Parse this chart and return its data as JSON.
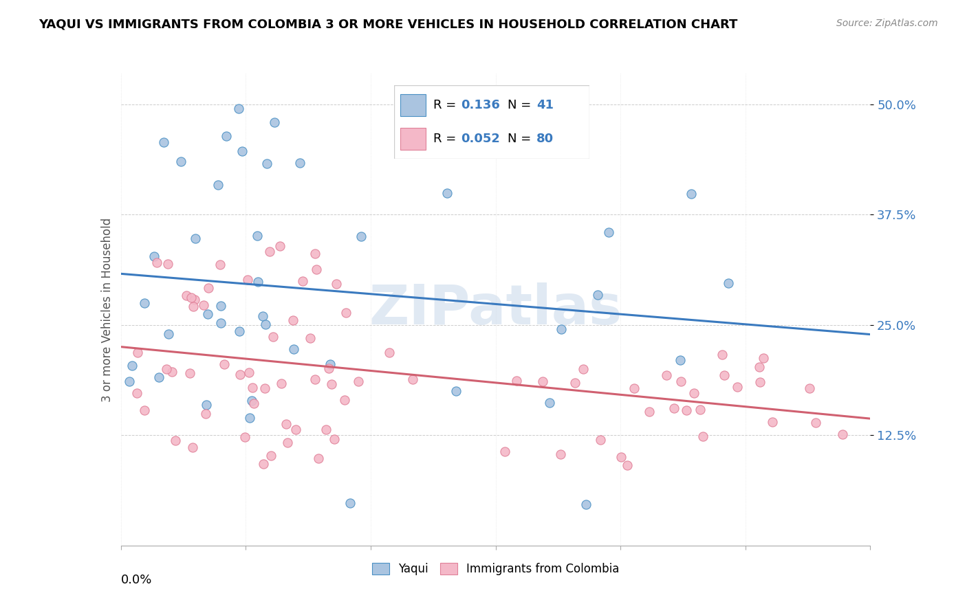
{
  "title": "YAQUI VS IMMIGRANTS FROM COLOMBIA 3 OR MORE VEHICLES IN HOUSEHOLD CORRELATION CHART",
  "source": "Source: ZipAtlas.com",
  "ylabel": "3 or more Vehicles in Household",
  "ytick_values": [
    0.125,
    0.25,
    0.375,
    0.5
  ],
  "xmin": 0.0,
  "xmax": 0.3,
  "ymin": 0.0,
  "ymax": 0.535,
  "blue_color": "#aac4e0",
  "pink_color": "#f4b8c8",
  "blue_edge_color": "#4a90c4",
  "pink_edge_color": "#e08098",
  "blue_line_color": "#3a7abf",
  "pink_line_color": "#d06070",
  "label_color": "#3a7abf",
  "watermark": "ZIPatlas",
  "blue_R": 0.136,
  "blue_N": 41,
  "pink_R": 0.052,
  "pink_N": 80,
  "blue_seed": 10,
  "pink_seed": 20
}
